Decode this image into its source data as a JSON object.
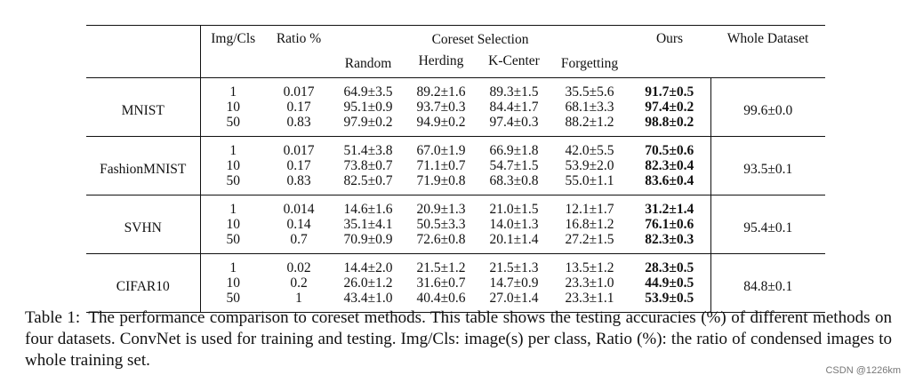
{
  "table": {
    "headers": {
      "dataset": "",
      "img_cls": "Img/Cls",
      "ratio": "Ratio %",
      "coreset_group": "Coreset Selection",
      "random": "Random",
      "herding": "Herding",
      "kcenter": "K-Center",
      "forgetting": "Forgetting",
      "ours": "Ours",
      "whole": "Whole Dataset"
    },
    "blocks": [
      {
        "dataset": "MNIST",
        "whole": "99.6±0.0",
        "rows": [
          {
            "img": "1",
            "ratio": "0.017",
            "random": "64.9±3.5",
            "herding": "89.2±1.6",
            "kcenter": "89.3±1.5",
            "forgetting": "35.5±5.6",
            "ours": "91.7±0.5"
          },
          {
            "img": "10",
            "ratio": "0.17",
            "random": "95.1±0.9",
            "herding": "93.7±0.3",
            "kcenter": "84.4±1.7",
            "forgetting": "68.1±3.3",
            "ours": "97.4±0.2"
          },
          {
            "img": "50",
            "ratio": "0.83",
            "random": "97.9±0.2",
            "herding": "94.9±0.2",
            "kcenter": "97.4±0.3",
            "forgetting": "88.2±1.2",
            "ours": "98.8±0.2"
          }
        ]
      },
      {
        "dataset": "FashionMNIST",
        "whole": "93.5±0.1",
        "rows": [
          {
            "img": "1",
            "ratio": "0.017",
            "random": "51.4±3.8",
            "herding": "67.0±1.9",
            "kcenter": "66.9±1.8",
            "forgetting": "42.0±5.5",
            "ours": "70.5±0.6"
          },
          {
            "img": "10",
            "ratio": "0.17",
            "random": "73.8±0.7",
            "herding": "71.1±0.7",
            "kcenter": "54.7±1.5",
            "forgetting": "53.9±2.0",
            "ours": "82.3±0.4"
          },
          {
            "img": "50",
            "ratio": "0.83",
            "random": "82.5±0.7",
            "herding": "71.9±0.8",
            "kcenter": "68.3±0.8",
            "forgetting": "55.0±1.1",
            "ours": "83.6±0.4"
          }
        ]
      },
      {
        "dataset": "SVHN",
        "whole": "95.4±0.1",
        "rows": [
          {
            "img": "1",
            "ratio": "0.014",
            "random": "14.6±1.6",
            "herding": "20.9±1.3",
            "kcenter": "21.0±1.5",
            "forgetting": "12.1±1.7",
            "ours": "31.2±1.4"
          },
          {
            "img": "10",
            "ratio": "0.14",
            "random": "35.1±4.1",
            "herding": "50.5±3.3",
            "kcenter": "14.0±1.3",
            "forgetting": "16.8±1.2",
            "ours": "76.1±0.6"
          },
          {
            "img": "50",
            "ratio": "0.7",
            "random": "70.9±0.9",
            "herding": "72.6±0.8",
            "kcenter": "20.1±1.4",
            "forgetting": "27.2±1.5",
            "ours": "82.3±0.3"
          }
        ]
      },
      {
        "dataset": "CIFAR10",
        "whole": "84.8±0.1",
        "rows": [
          {
            "img": "1",
            "ratio": "0.02",
            "random": "14.4±2.0",
            "herding": "21.5±1.2",
            "kcenter": "21.5±1.3",
            "forgetting": "13.5±1.2",
            "ours": "28.3±0.5"
          },
          {
            "img": "10",
            "ratio": "0.2",
            "random": "26.0±1.2",
            "herding": "31.6±0.7",
            "kcenter": "14.7±0.9",
            "forgetting": "23.3±1.0",
            "ours": "44.9±0.5"
          },
          {
            "img": "50",
            "ratio": "1",
            "random": "43.4±1.0",
            "herding": "40.4±0.6",
            "kcenter": "27.0±1.4",
            "forgetting": "23.3±1.1",
            "ours": "53.9±0.5"
          }
        ]
      }
    ]
  },
  "caption": {
    "label": "Table 1:",
    "text": "The performance comparison to coreset methods.  This table shows the testing accuracies (%) of different methods on four datasets.  ConvNet is used for training and testing.  Img/Cls:  image(s) per class, Ratio (%): the ratio of condensed images to whole training set."
  },
  "watermark": "CSDN @1226km"
}
